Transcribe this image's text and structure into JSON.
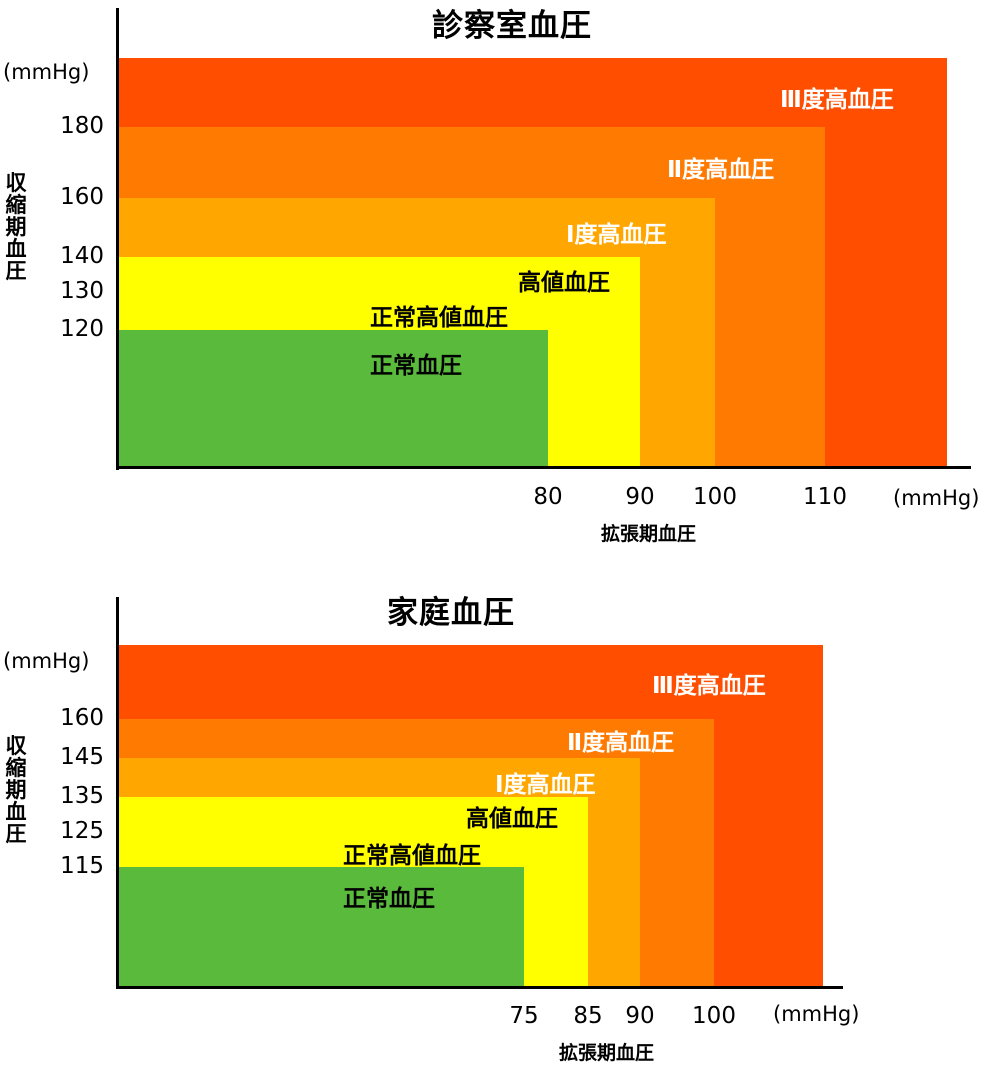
{
  "chart_data": [
    {
      "type": "area",
      "title": "診察室血圧",
      "ylabel": "収縮期血圧",
      "xlabel": "拡張期血圧",
      "unit_y": "(mmHg)",
      "unit_x": "(mmHg)",
      "y_ticks": [
        "180",
        "160",
        "140",
        "130",
        "120"
      ],
      "x_ticks": [
        "80",
        "90",
        "100",
        "110"
      ],
      "grid": false,
      "categories": [
        {
          "label": "Ⅲ度高血圧",
          "systolic_min": 180,
          "diastolic_min": 110,
          "color": "#ff4e00"
        },
        {
          "label": "Ⅱ度高血圧",
          "systolic_min": 160,
          "diastolic_min": 100,
          "color": "#ff7a00"
        },
        {
          "label": "Ⅰ度高血圧",
          "systolic_min": 140,
          "diastolic_min": 90,
          "color": "#ffa700"
        },
        {
          "label": "高値血圧",
          "systolic_min": 130,
          "diastolic_min": 80,
          "color": "#ffff00"
        },
        {
          "label": "正常高値血圧",
          "systolic_min": 120,
          "diastolic_max": 80,
          "color": "#66dd44"
        },
        {
          "label": "正常血圧",
          "systolic_max": 120,
          "diastolic_max": 80,
          "color": "#5aba3c"
        }
      ]
    },
    {
      "type": "area",
      "title": "家庭血圧",
      "ylabel": "収縮期血圧",
      "xlabel": "拡張期血圧",
      "unit_y": "(mmHg)",
      "unit_x": "(mmHg)",
      "y_ticks": [
        "160",
        "145",
        "135",
        "125",
        "115"
      ],
      "x_ticks": [
        "75",
        "85",
        "90",
        "100"
      ],
      "grid": false,
      "categories": [
        {
          "label": "Ⅲ度高血圧",
          "systolic_min": 160,
          "diastolic_min": 100,
          "color": "#ff4e00"
        },
        {
          "label": "Ⅱ度高血圧",
          "systolic_min": 145,
          "diastolic_min": 90,
          "color": "#ff7a00"
        },
        {
          "label": "Ⅰ度高血圧",
          "systolic_min": 135,
          "diastolic_min": 85,
          "color": "#ffa700"
        },
        {
          "label": "高値血圧",
          "systolic_min": 125,
          "diastolic_min": 75,
          "color": "#ffff00"
        },
        {
          "label": "正常高値血圧",
          "systolic_min": 115,
          "diastolic_max": 75,
          "color": "#66dd44"
        },
        {
          "label": "正常血圧",
          "systolic_max": 115,
          "diastolic_max": 75,
          "color": "#5aba3c"
        }
      ]
    }
  ]
}
